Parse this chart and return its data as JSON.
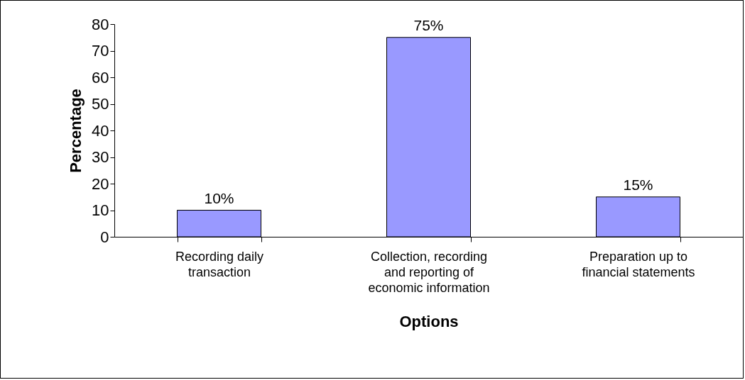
{
  "chart_data": {
    "type": "bar",
    "xlabel": "Options",
    "ylabel": "Percentage",
    "categories": [
      "Recording daily transaction",
      "Collection, recording and reporting of economic information",
      "Preparation up to financial statements"
    ],
    "values": [
      10,
      75,
      15
    ],
    "value_labels": [
      "10%",
      "75%",
      "15%"
    ],
    "color": "#9999ff",
    "ylim": [
      0,
      80
    ],
    "yticks": [
      0,
      10,
      20,
      30,
      40,
      50,
      60,
      70,
      80
    ],
    "grid": false
  }
}
